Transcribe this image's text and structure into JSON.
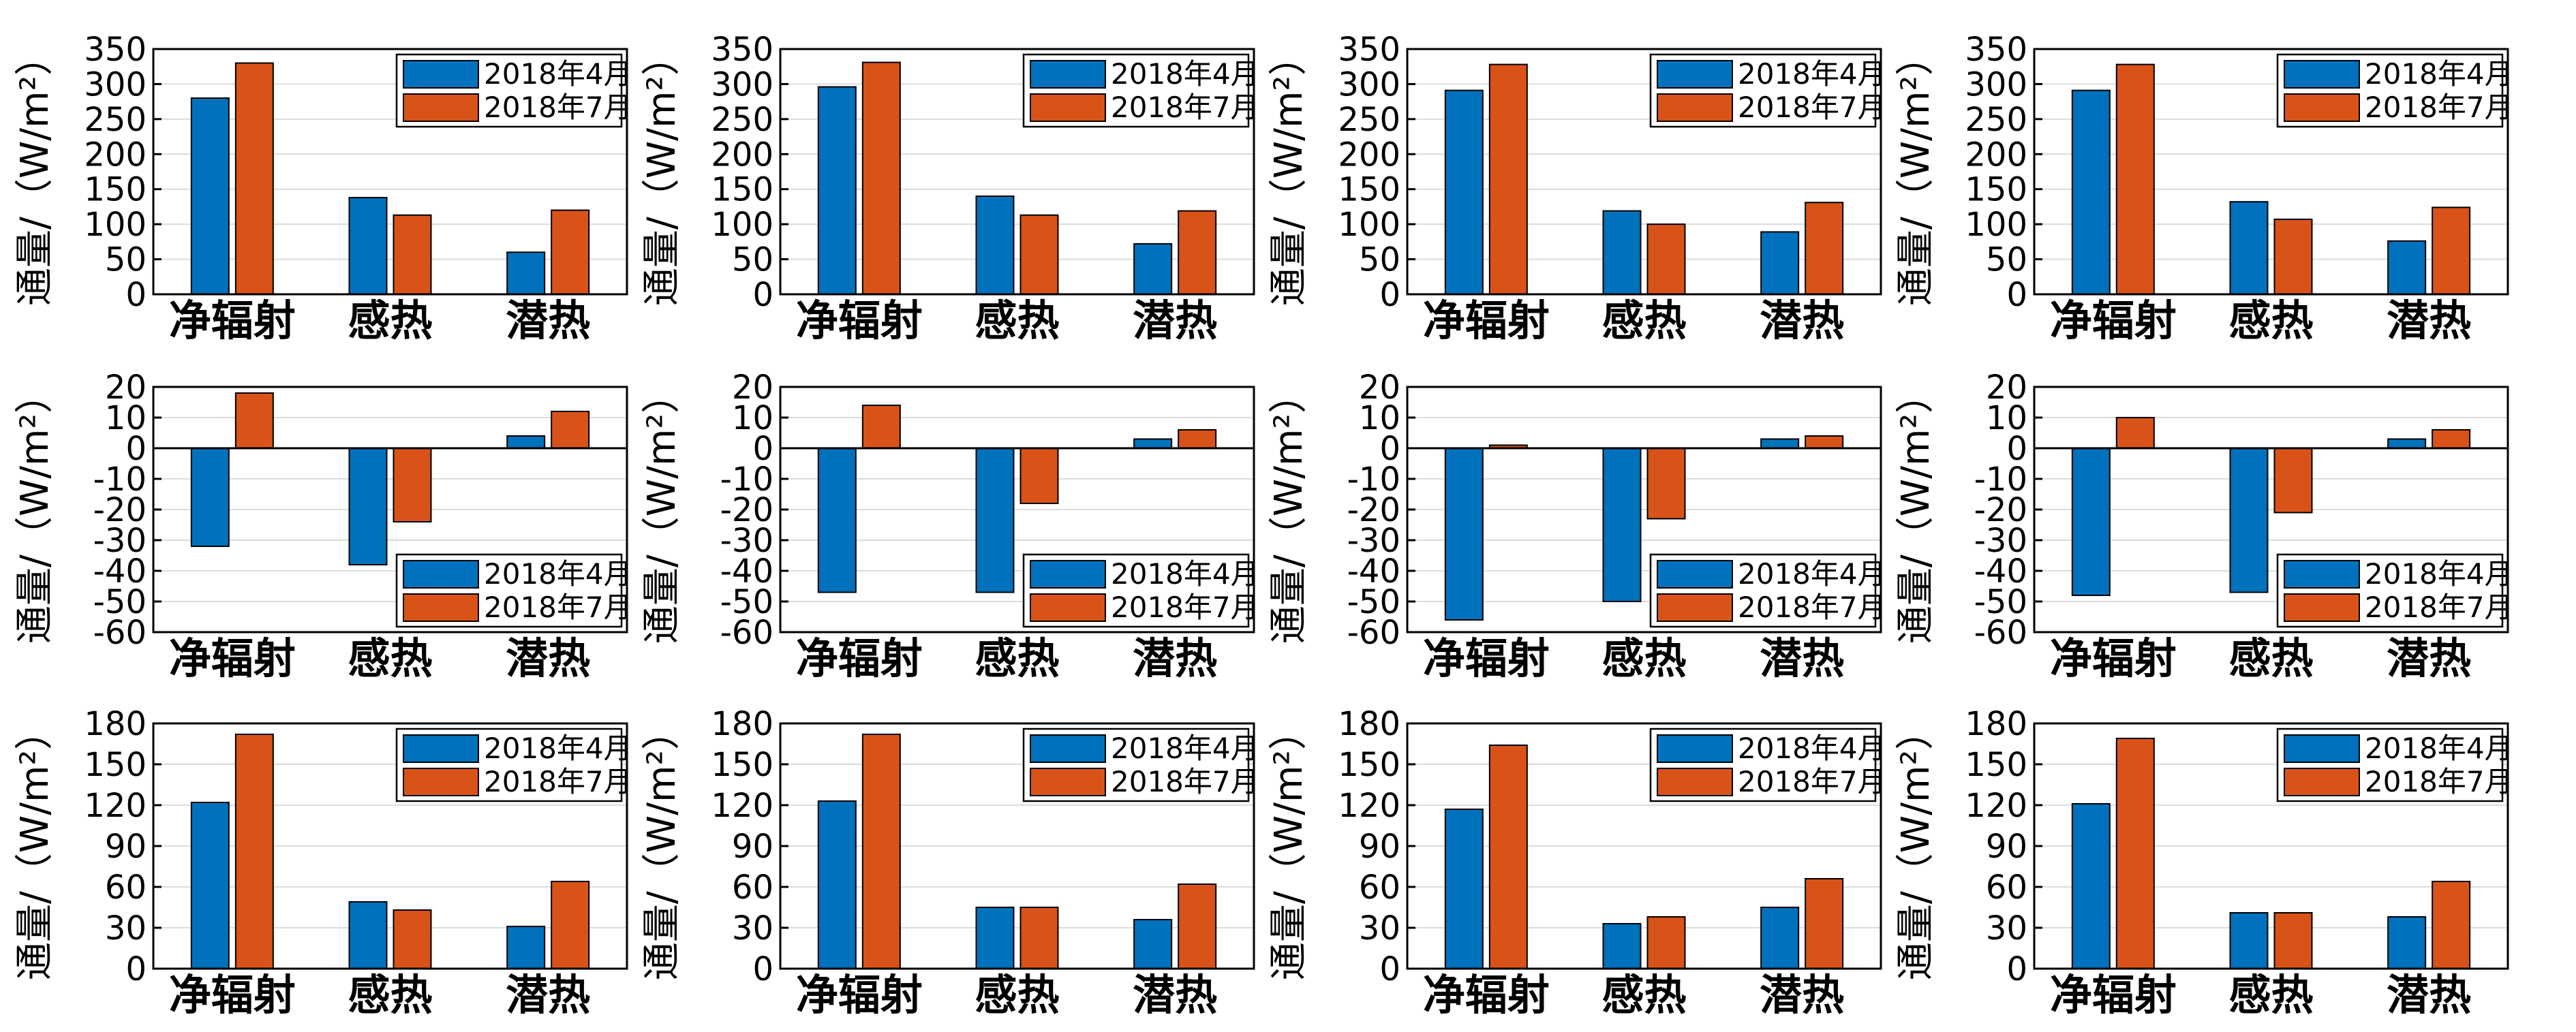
{
  "figure": {
    "background": "#ffffff",
    "colors": {
      "april": "#0072BD",
      "july": "#D95319",
      "axis": "#000000",
      "grid": "#dcdcdc"
    }
  },
  "chart_data": [
    {
      "type": "bar",
      "categories": [
        "净辐射",
        "感热",
        "潜热"
      ],
      "ylabel": "通量/（W/m²）",
      "ylim": [
        0,
        350
      ],
      "yticks": [
        0,
        50,
        100,
        150,
        200,
        250,
        300,
        350
      ],
      "grid": "y",
      "legend_position": "top-right",
      "series": [
        {
          "name": "2018年4月",
          "values": [
            280,
            138,
            60
          ]
        },
        {
          "name": "2018年7月",
          "values": [
            330,
            113,
            120
          ]
        }
      ]
    },
    {
      "type": "bar",
      "categories": [
        "净辐射",
        "感热",
        "潜热"
      ],
      "ylabel": "通量/（W/m²）",
      "ylim": [
        0,
        350
      ],
      "yticks": [
        0,
        50,
        100,
        150,
        200,
        250,
        300,
        350
      ],
      "grid": "y",
      "legend_position": "top-right",
      "series": [
        {
          "name": "2018年4月",
          "values": [
            296,
            140,
            72
          ]
        },
        {
          "name": "2018年7月",
          "values": [
            331,
            113,
            119
          ]
        }
      ]
    },
    {
      "type": "bar",
      "categories": [
        "净辐射",
        "感热",
        "潜热"
      ],
      "ylabel": "通量/（W/m²）",
      "ylim": [
        0,
        350
      ],
      "yticks": [
        0,
        50,
        100,
        150,
        200,
        250,
        300,
        350
      ],
      "grid": "y",
      "legend_position": "top-right",
      "series": [
        {
          "name": "2018年4月",
          "values": [
            291,
            119,
            89
          ]
        },
        {
          "name": "2018年7月",
          "values": [
            328,
            100,
            131
          ]
        }
      ]
    },
    {
      "type": "bar",
      "categories": [
        "净辐射",
        "感热",
        "潜热"
      ],
      "ylabel": "通量/（W/m²）",
      "ylim": [
        0,
        350
      ],
      "yticks": [
        0,
        50,
        100,
        150,
        200,
        250,
        300,
        350
      ],
      "grid": "y",
      "legend_position": "top-right",
      "series": [
        {
          "name": "2018年4月",
          "values": [
            291,
            132,
            76
          ]
        },
        {
          "name": "2018年7月",
          "values": [
            328,
            107,
            124
          ]
        }
      ]
    },
    {
      "type": "bar",
      "categories": [
        "净辐射",
        "感热",
        "潜热"
      ],
      "ylabel": "通量/（W/m²）",
      "ylim": [
        -60,
        20
      ],
      "yticks": [
        -60,
        -50,
        -40,
        -30,
        -20,
        -10,
        0,
        10,
        20
      ],
      "grid": "y",
      "legend_position": "bottom-right",
      "series": [
        {
          "name": "2018年4月",
          "values": [
            -32,
            -38,
            4
          ]
        },
        {
          "name": "2018年7月",
          "values": [
            18,
            -24,
            12
          ]
        }
      ]
    },
    {
      "type": "bar",
      "categories": [
        "净辐射",
        "感热",
        "潜热"
      ],
      "ylabel": "通量/（W/m²）",
      "ylim": [
        -60,
        20
      ],
      "yticks": [
        -60,
        -50,
        -40,
        -30,
        -20,
        -10,
        0,
        10,
        20
      ],
      "grid": "y",
      "legend_position": "bottom-right",
      "series": [
        {
          "name": "2018年4月",
          "values": [
            -47,
            -47,
            3
          ]
        },
        {
          "name": "2018年7月",
          "values": [
            14,
            -18,
            6
          ]
        }
      ]
    },
    {
      "type": "bar",
      "categories": [
        "净辐射",
        "感热",
        "潜热"
      ],
      "ylabel": "通量/（W/m²）",
      "ylim": [
        -60,
        20
      ],
      "yticks": [
        -60,
        -50,
        -40,
        -30,
        -20,
        -10,
        0,
        10,
        20
      ],
      "grid": "y",
      "legend_position": "bottom-right",
      "series": [
        {
          "name": "2018年4月",
          "values": [
            -56,
            -50,
            3
          ]
        },
        {
          "name": "2018年7月",
          "values": [
            1,
            -23,
            4
          ]
        }
      ]
    },
    {
      "type": "bar",
      "categories": [
        "净辐射",
        "感热",
        "潜热"
      ],
      "ylabel": "通量/（W/m²）",
      "ylim": [
        -60,
        20
      ],
      "yticks": [
        -60,
        -50,
        -40,
        -30,
        -20,
        -10,
        0,
        10,
        20
      ],
      "grid": "y",
      "legend_position": "bottom-right",
      "series": [
        {
          "name": "2018年4月",
          "values": [
            -48,
            -47,
            3
          ]
        },
        {
          "name": "2018年7月",
          "values": [
            10,
            -21,
            6
          ]
        }
      ]
    },
    {
      "type": "bar",
      "categories": [
        "净辐射",
        "感热",
        "潜热"
      ],
      "ylabel": "通量/（W/m²）",
      "ylim": [
        0,
        180
      ],
      "yticks": [
        0,
        30,
        60,
        90,
        120,
        150,
        180
      ],
      "grid": "y",
      "legend_position": "top-right",
      "series": [
        {
          "name": "2018年4月",
          "values": [
            122,
            49,
            31
          ]
        },
        {
          "name": "2018年7月",
          "values": [
            172,
            43,
            64
          ]
        }
      ]
    },
    {
      "type": "bar",
      "categories": [
        "净辐射",
        "感热",
        "潜热"
      ],
      "ylabel": "通量/（W/m²）",
      "ylim": [
        0,
        180
      ],
      "yticks": [
        0,
        30,
        60,
        90,
        120,
        150,
        180
      ],
      "grid": "y",
      "legend_position": "top-right",
      "series": [
        {
          "name": "2018年4月",
          "values": [
            123,
            45,
            36
          ]
        },
        {
          "name": "2018年7月",
          "values": [
            172,
            45,
            62
          ]
        }
      ]
    },
    {
      "type": "bar",
      "categories": [
        "净辐射",
        "感热",
        "潜热"
      ],
      "ylabel": "通量/（W/m²）",
      "ylim": [
        0,
        180
      ],
      "yticks": [
        0,
        30,
        60,
        90,
        120,
        150,
        180
      ],
      "grid": "y",
      "legend_position": "top-right",
      "series": [
        {
          "name": "2018年4月",
          "values": [
            117,
            33,
            45
          ]
        },
        {
          "name": "2018年7月",
          "values": [
            164,
            38,
            66
          ]
        }
      ]
    },
    {
      "type": "bar",
      "categories": [
        "净辐射",
        "感热",
        "潜热"
      ],
      "ylabel": "通量/（W/m²）",
      "ylim": [
        0,
        180
      ],
      "yticks": [
        0,
        30,
        60,
        90,
        120,
        150,
        180
      ],
      "grid": "y",
      "legend_position": "top-right",
      "series": [
        {
          "name": "2018年4月",
          "values": [
            121,
            41,
            38
          ]
        },
        {
          "name": "2018年7月",
          "values": [
            169,
            41,
            64
          ]
        }
      ]
    }
  ]
}
